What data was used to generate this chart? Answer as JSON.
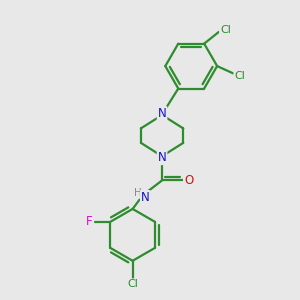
{
  "bg_color": "#e8e8e8",
  "bond_color": "#2d8c2d",
  "bond_width": 1.6,
  "atom_colors": {
    "N": "#1414cc",
    "O": "#cc1414",
    "F": "#cc14cc",
    "Cl": "#2d8c2d",
    "H": "#888888"
  },
  "fs": 8.5
}
